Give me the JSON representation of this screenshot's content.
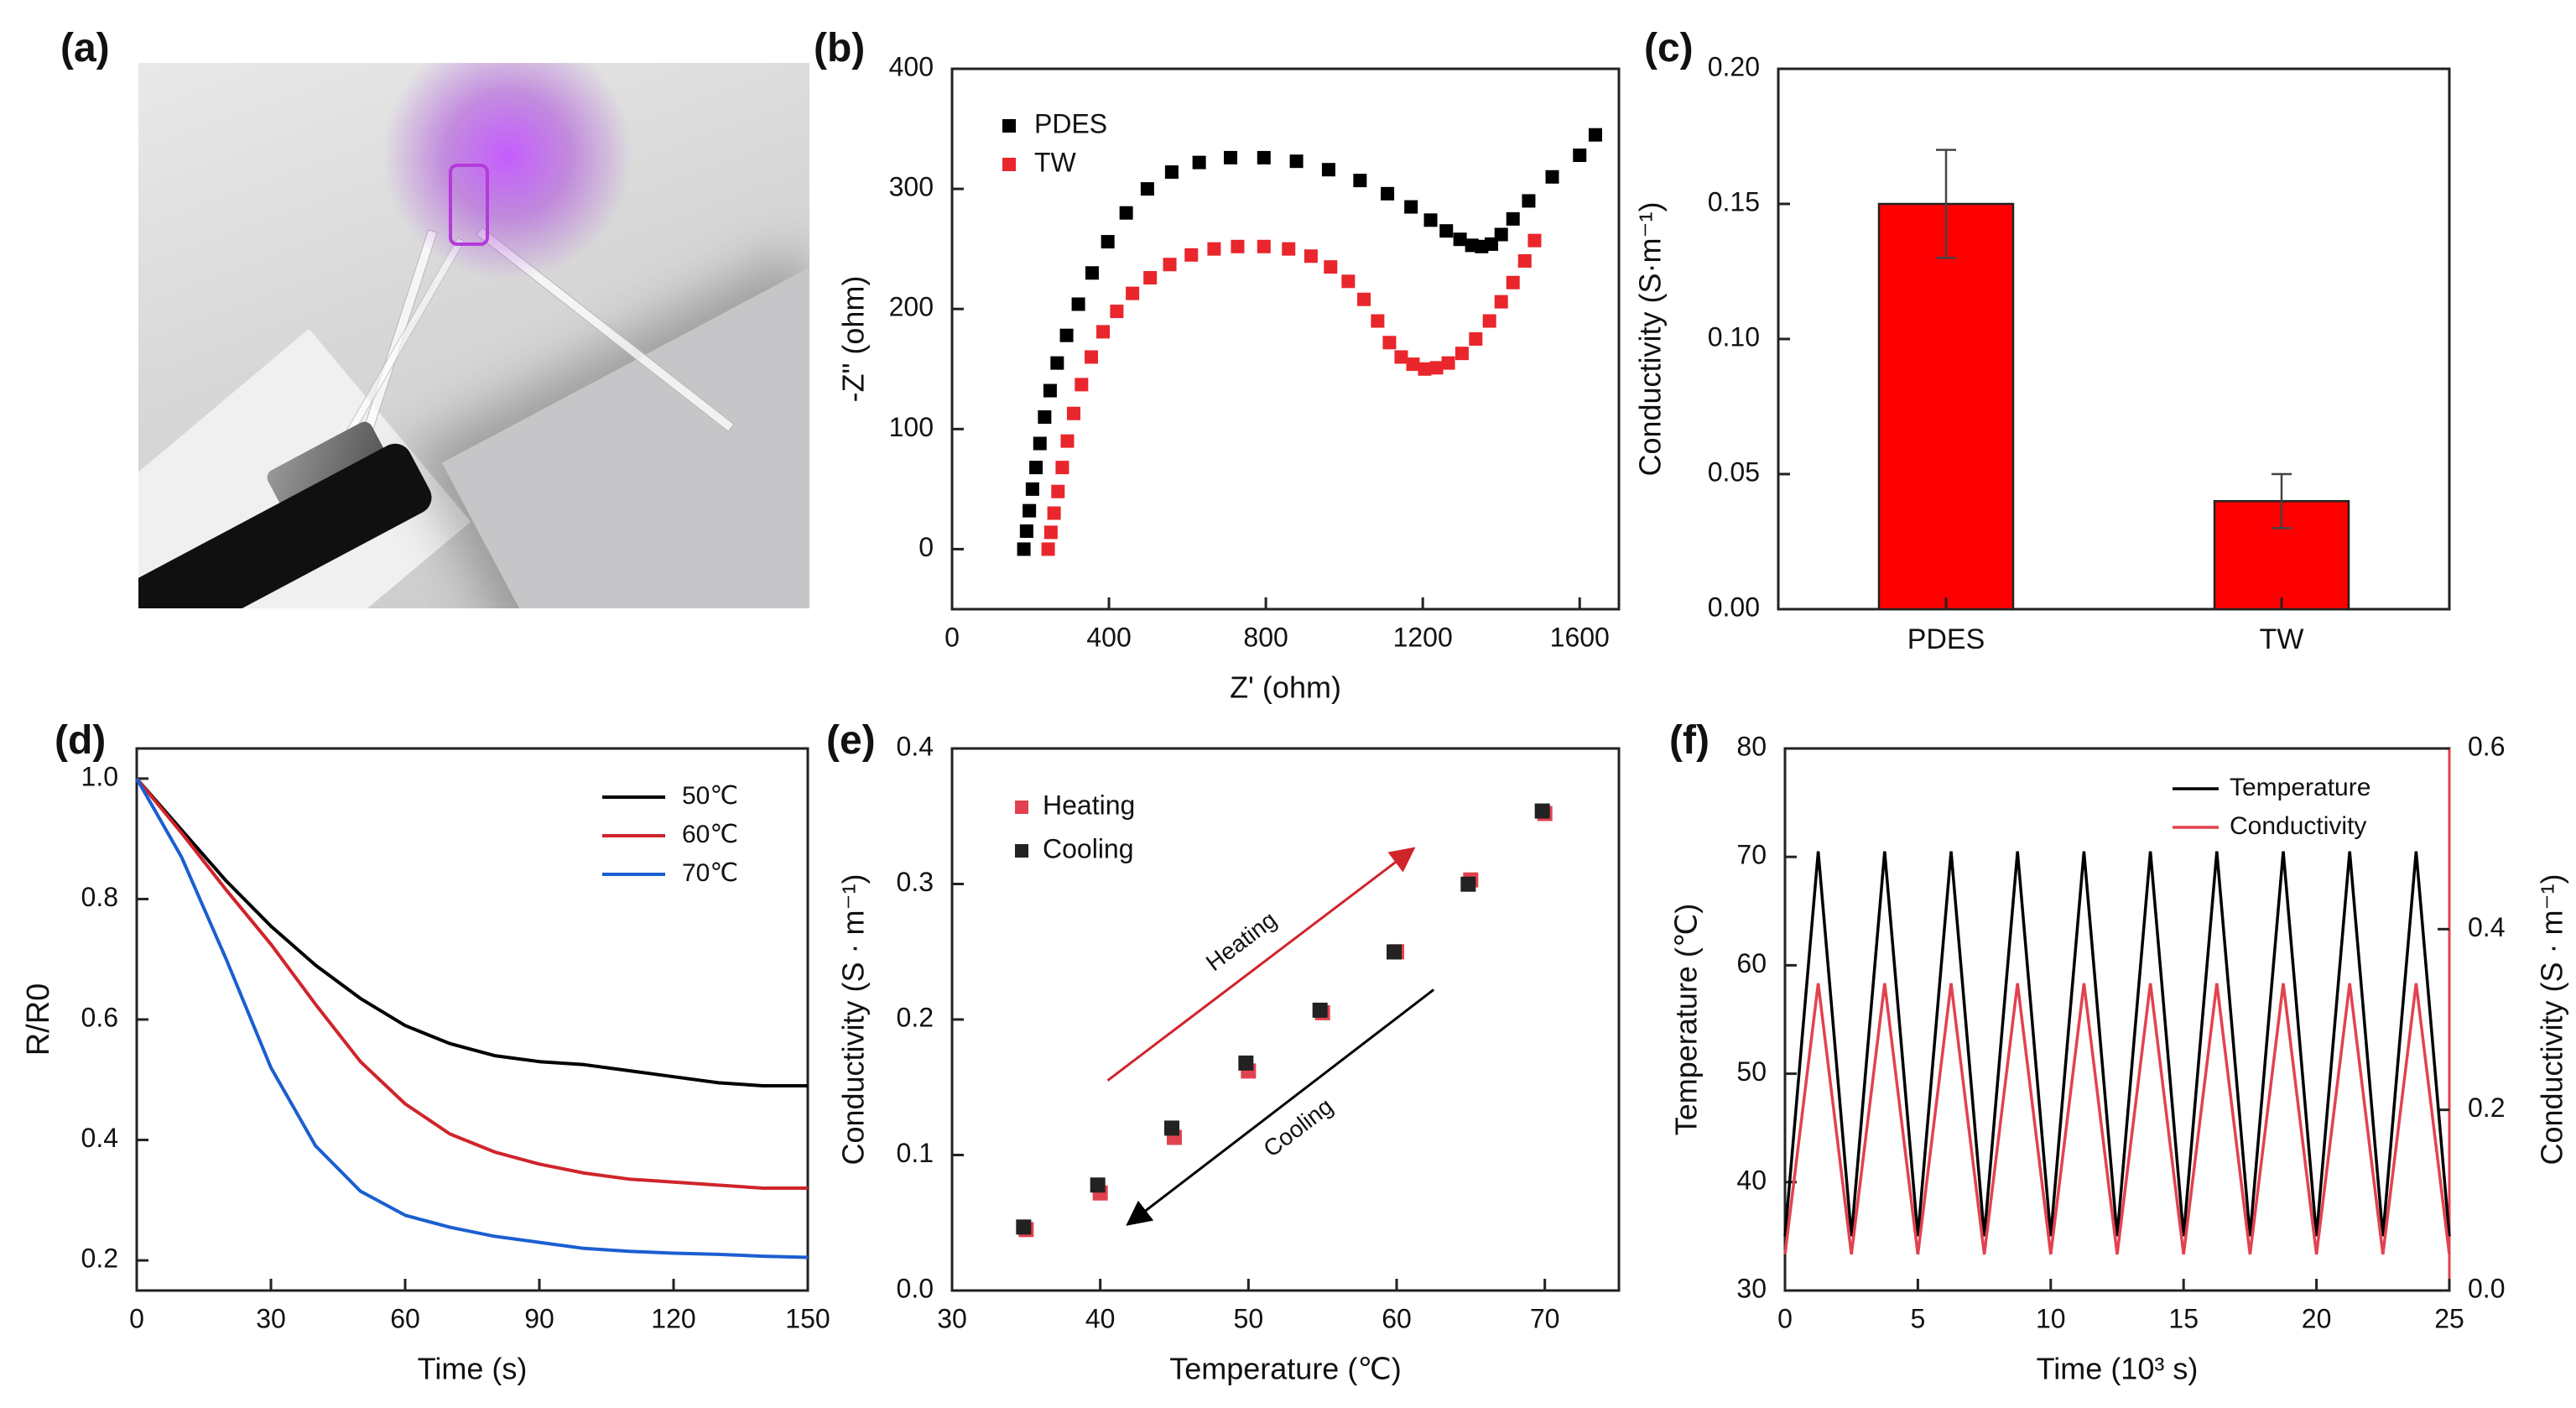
{
  "panel_labels": {
    "a": "(a)",
    "b": "(b)",
    "c": "(c)",
    "d": "(d)",
    "e": "(e)",
    "f": "(f)"
  },
  "photo": {
    "icon": "led-demo-photo"
  },
  "chart_data": [
    {
      "id": "b",
      "type": "scatter",
      "xlabel": "Z' (ohm)",
      "ylabel": "-Z\" (ohm)",
      "xlim": [
        0,
        1700
      ],
      "ylim": [
        -50,
        400
      ],
      "xticks": [
        0,
        400,
        800,
        1200,
        1600
      ],
      "yticks": [
        0,
        100,
        200,
        300,
        400
      ],
      "legend": "top-left",
      "series": [
        {
          "name": "PDES",
          "color": "#000000",
          "x": [
            183,
            190,
            197,
            205,
            214,
            224,
            236,
            250,
            268,
            292,
            322,
            357,
            397,
            444,
            498,
            560,
            630,
            710,
            795,
            878,
            960,
            1040,
            1110,
            1170,
            1220,
            1260,
            1295,
            1325,
            1350,
            1375,
            1400,
            1430,
            1470,
            1530,
            1600,
            1640
          ],
          "y": [
            0,
            15,
            32,
            50,
            68,
            88,
            110,
            132,
            155,
            178,
            204,
            230,
            256,
            280,
            300,
            314,
            322,
            326,
            326,
            323,
            316,
            307,
            296,
            285,
            274,
            265,
            258,
            253,
            252,
            254,
            262,
            275,
            290,
            310,
            328,
            345
          ]
        },
        {
          "name": "TW",
          "color": "#e8262c",
          "x": [
            245,
            252,
            260,
            270,
            281,
            294,
            310,
            330,
            355,
            385,
            420,
            460,
            505,
            555,
            610,
            668,
            728,
            795,
            858,
            915,
            965,
            1010,
            1050,
            1085,
            1115,
            1145,
            1175,
            1205,
            1235,
            1265,
            1300,
            1335,
            1370,
            1400,
            1430,
            1460,
            1485
          ],
          "y": [
            0,
            14,
            30,
            48,
            68,
            90,
            113,
            137,
            160,
            181,
            198,
            213,
            226,
            237,
            245,
            250,
            252,
            252,
            250,
            244,
            235,
            223,
            208,
            190,
            172,
            160,
            154,
            150,
            151,
            155,
            163,
            175,
            190,
            206,
            222,
            240,
            257
          ]
        }
      ]
    },
    {
      "id": "c",
      "type": "bar",
      "xlabel": "",
      "ylabel": "Conductivity (S·m⁻¹)",
      "categories": [
        "PDES",
        "TW"
      ],
      "values": [
        0.15,
        0.04
      ],
      "errors": [
        0.02,
        0.01
      ],
      "ylim": [
        0,
        0.2
      ],
      "yticks": [
        0.0,
        0.05,
        0.1,
        0.15,
        0.2
      ],
      "ytick_labels": [
        "0.00",
        "0.05",
        "0.10",
        "0.15",
        "0.20"
      ],
      "color": "#ff0000"
    },
    {
      "id": "d",
      "type": "line",
      "xlabel": "Time (s)",
      "ylabel": "R/R0",
      "xlim": [
        0,
        150
      ],
      "ylim": [
        0.15,
        1.05
      ],
      "xticks": [
        0,
        30,
        60,
        90,
        120,
        150
      ],
      "yticks": [
        0.2,
        0.4,
        0.6,
        0.8,
        1.0
      ],
      "legend": "top-right",
      "series": [
        {
          "name": "50℃",
          "color": "#000000",
          "x": [
            0,
            10,
            20,
            30,
            40,
            50,
            60,
            70,
            80,
            90,
            100,
            110,
            120,
            130,
            140,
            150
          ],
          "y": [
            1.0,
            0.915,
            0.83,
            0.755,
            0.69,
            0.635,
            0.59,
            0.56,
            0.54,
            0.53,
            0.525,
            0.515,
            0.505,
            0.495,
            0.49,
            0.49
          ]
        },
        {
          "name": "60℃",
          "color": "#d0242b",
          "x": [
            0,
            10,
            20,
            30,
            40,
            50,
            60,
            70,
            80,
            90,
            100,
            110,
            120,
            130,
            140,
            150
          ],
          "y": [
            1.0,
            0.91,
            0.815,
            0.725,
            0.625,
            0.53,
            0.46,
            0.41,
            0.38,
            0.36,
            0.345,
            0.335,
            0.33,
            0.325,
            0.32,
            0.32
          ]
        },
        {
          "name": "70℃",
          "color": "#1a5fd1",
          "x": [
            0,
            10,
            20,
            30,
            40,
            50,
            60,
            70,
            80,
            90,
            100,
            110,
            120,
            130,
            140,
            150
          ],
          "y": [
            1.0,
            0.87,
            0.7,
            0.52,
            0.39,
            0.315,
            0.275,
            0.255,
            0.24,
            0.23,
            0.22,
            0.215,
            0.212,
            0.21,
            0.207,
            0.205
          ]
        }
      ]
    },
    {
      "id": "e",
      "type": "scatter",
      "xlabel": "Temperature (℃)",
      "ylabel": "Conductivity (S · m⁻¹)",
      "xlim": [
        30,
        75
      ],
      "ylim": [
        0,
        0.4
      ],
      "xticks": [
        30,
        40,
        50,
        60,
        70
      ],
      "yticks": [
        0.0,
        0.1,
        0.2,
        0.3,
        0.4
      ],
      "legend": "top-left",
      "series": [
        {
          "name": "Heating",
          "color": "#e2424f",
          "x": [
            35,
            40,
            45,
            50,
            55,
            60,
            65,
            70
          ],
          "y": [
            0.045,
            0.072,
            0.113,
            0.162,
            0.205,
            0.25,
            0.303,
            0.352
          ]
        },
        {
          "name": "Cooling",
          "color": "#222222",
          "x": [
            35,
            40,
            45,
            50,
            55,
            60,
            65,
            70
          ],
          "y": [
            0.045,
            0.076,
            0.118,
            0.166,
            0.205,
            0.248,
            0.298,
            0.352
          ]
        }
      ],
      "annotations": [
        {
          "text": "Heating",
          "color": "#d0242b",
          "x1": 40.5,
          "y1": 0.155,
          "x2": 61,
          "y2": 0.325
        },
        {
          "text": "Cooling",
          "color": "#000000",
          "x1": 62.5,
          "y1": 0.222,
          "x2": 42,
          "y2": 0.05
        }
      ]
    },
    {
      "id": "f",
      "type": "line",
      "xlabel": "Time (10³ s)",
      "ylabel": "Temperature (℃)",
      "ylabel_right": "Conductivity (S · m⁻¹)",
      "xlim": [
        0,
        25
      ],
      "ylim": [
        30,
        80
      ],
      "ylim_right": [
        0,
        0.6
      ],
      "xticks": [
        0,
        5,
        10,
        15,
        20,
        25
      ],
      "yticks": [
        30,
        40,
        50,
        60,
        70,
        80
      ],
      "yticks_right": [
        0.0,
        0.2,
        0.4,
        0.6
      ],
      "ytick_labels_right": [
        "0.0",
        "0.2",
        "0.4",
        "0.6"
      ],
      "legend": "top-right",
      "cycles": {
        "period": 2.5,
        "first_peak": 1.25,
        "count": 10
      },
      "series": [
        {
          "name": "Temperature",
          "color": "#000000",
          "axis": "left",
          "min": 35,
          "max": 70.5
        },
        {
          "name": "Conductivity",
          "color": "#e2424f",
          "axis": "right",
          "min": 0.04,
          "max": 0.34
        }
      ]
    }
  ]
}
